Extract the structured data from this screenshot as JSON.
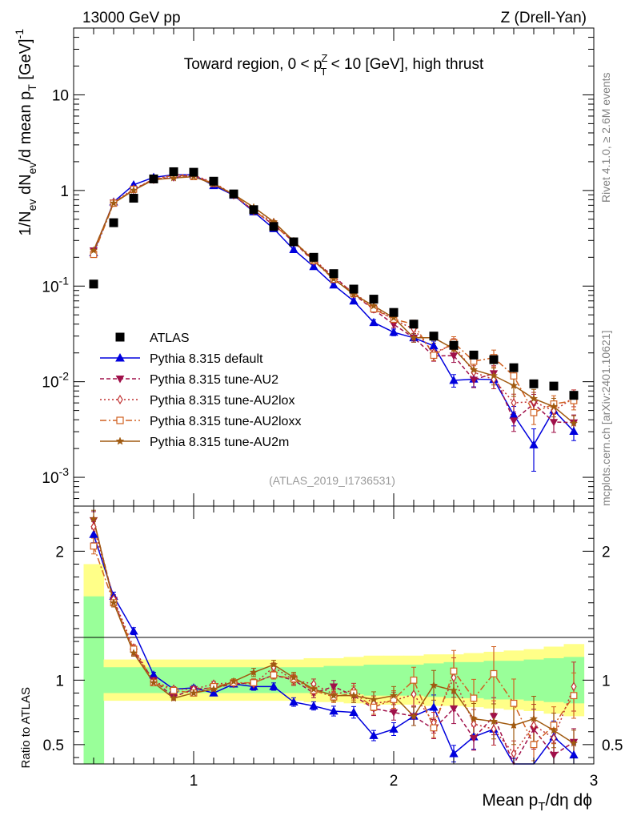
{
  "header": {
    "left": "13000 GeV pp",
    "right": "Z (Drell-Yan)"
  },
  "side_labels": {
    "rivet": "Rivet 4.1.0, ≥ 2.6M events",
    "mcplots": "mcplots.cern.ch [arXiv:2401.10621]"
  },
  "chart_data": {
    "type": "line",
    "title": "Toward region, 0 < p_T^Z < 10 [GeV], high thrust",
    "analysis_tag": "(ATLAS_2019_I1736531)",
    "xlabel": "Mean p_T/dη dϕ",
    "ylabel_main": "1/N_ev dN_ev/d mean p_T [GeV]^-1",
    "ylabel_ratio": "Ratio to ATLAS",
    "xlim": [
      0.4,
      3.0
    ],
    "ylim_main": [
      0.0005,
      50
    ],
    "ylim_ratio": [
      0.35,
      2.35
    ],
    "x_ticks": [
      "1",
      "2",
      "3"
    ],
    "y_ticks_main": [
      "10^-3",
      "10^-2",
      "10^-1",
      "1",
      "10"
    ],
    "y_ticks_ratio": [
      "0.5",
      "1",
      "2"
    ],
    "x": [
      0.5,
      0.6,
      0.7,
      0.8,
      0.9,
      1.0,
      1.1,
      1.2,
      1.3,
      1.4,
      1.5,
      1.6,
      1.7,
      1.8,
      1.9,
      2.0,
      2.1,
      2.2,
      2.3,
      2.4,
      2.5,
      2.6,
      2.7,
      2.8,
      2.9
    ],
    "data": {
      "name": "ATLAS",
      "values": [
        0.105,
        0.46,
        0.83,
        1.32,
        1.57,
        1.55,
        1.25,
        0.92,
        0.63,
        0.42,
        0.29,
        0.2,
        0.135,
        0.093,
        0.073,
        0.053,
        0.04,
        0.03,
        0.024,
        0.019,
        0.017,
        0.014,
        0.0095,
        0.009,
        0.0072
      ]
    },
    "band_inner": [
      0.65,
      0.1,
      0.1,
      0.1,
      0.1,
      0.1,
      0.1,
      0.1,
      0.1,
      0.1,
      0.1,
      0.1,
      0.11,
      0.11,
      0.12,
      0.12,
      0.12,
      0.13,
      0.14,
      0.14,
      0.15,
      0.15,
      0.16,
      0.17,
      0.18
    ],
    "band_outer": [
      0.9,
      0.16,
      0.16,
      0.16,
      0.16,
      0.16,
      0.16,
      0.16,
      0.16,
      0.16,
      0.16,
      0.17,
      0.17,
      0.18,
      0.19,
      0.19,
      0.19,
      0.2,
      0.2,
      0.21,
      0.22,
      0.23,
      0.24,
      0.26,
      0.28
    ],
    "series": [
      {
        "name": "Pythia 8.315 default",
        "color": "#0000dd",
        "dash": "",
        "marker": "triangle-up",
        "filled": true,
        "ratio": [
          2.13,
          1.65,
          1.38,
          1.04,
          0.93,
          0.94,
          0.9,
          0.97,
          0.95,
          0.95,
          0.83,
          0.8,
          0.76,
          0.75,
          0.57,
          0.62,
          0.72,
          0.79,
          0.43,
          0.56,
          0.62,
          0.32,
          0.23,
          0.56,
          0.42
        ],
        "rel_err": [
          0.03,
          0.02,
          0.02,
          0.02,
          0.02,
          0.02,
          0.02,
          0.02,
          0.03,
          0.03,
          0.04,
          0.04,
          0.05,
          0.06,
          0.07,
          0.08,
          0.1,
          0.12,
          0.15,
          0.17,
          0.2,
          0.23,
          0.47,
          0.22,
          0.2
        ]
      },
      {
        "name": "Pythia 8.315 tune-AU2",
        "color": "#a0104a",
        "dash": "5,3",
        "marker": "triangle-down",
        "filled": true,
        "ratio": [
          2.24,
          1.62,
          1.22,
          1.0,
          0.87,
          0.93,
          0.94,
          0.97,
          0.98,
          1.04,
          1.0,
          0.9,
          0.95,
          0.88,
          0.78,
          0.75,
          0.72,
          0.62,
          0.78,
          0.55,
          0.72,
          0.28,
          0.62,
          0.42,
          0.52
        ],
        "rel_err": [
          0.03,
          0.02,
          0.02,
          0.02,
          0.02,
          0.02,
          0.02,
          0.02,
          0.03,
          0.03,
          0.04,
          0.04,
          0.05,
          0.06,
          0.07,
          0.08,
          0.1,
          0.12,
          0.15,
          0.17,
          0.2,
          0.23,
          0.25,
          0.22,
          0.2
        ]
      },
      {
        "name": "Pythia 8.315 tune-AU2lox",
        "color": "#c03030",
        "dash": "2,3",
        "marker": "diamond-open",
        "filled": false,
        "ratio": [
          2.19,
          1.63,
          1.25,
          0.99,
          0.93,
          0.93,
          0.97,
          0.98,
          0.97,
          1.1,
          1.0,
          0.97,
          0.89,
          0.92,
          0.82,
          0.84,
          0.89,
          0.67,
          1.02,
          0.66,
          0.62,
          0.43,
          0.65,
          0.55,
          0.95
        ],
        "rel_err": [
          0.03,
          0.02,
          0.02,
          0.02,
          0.02,
          0.02,
          0.02,
          0.02,
          0.03,
          0.03,
          0.04,
          0.04,
          0.05,
          0.06,
          0.07,
          0.08,
          0.1,
          0.12,
          0.15,
          0.17,
          0.2,
          0.23,
          0.25,
          0.22,
          0.2
        ]
      },
      {
        "name": "Pythia 8.315 tune-AU2loxx",
        "color": "#d06020",
        "dash": "8,3,2,3",
        "marker": "square-open",
        "filled": false,
        "ratio": [
          2.04,
          1.6,
          1.24,
          0.98,
          0.92,
          0.9,
          0.95,
          0.98,
          0.98,
          1.04,
          1.01,
          0.92,
          0.87,
          0.9,
          0.79,
          0.85,
          1.0,
          0.63,
          1.07,
          0.86,
          1.05,
          0.82,
          0.5,
          0.65,
          0.88
        ],
        "rel_err": [
          0.03,
          0.02,
          0.02,
          0.02,
          0.02,
          0.02,
          0.02,
          0.02,
          0.03,
          0.03,
          0.04,
          0.04,
          0.05,
          0.06,
          0.07,
          0.08,
          0.1,
          0.12,
          0.15,
          0.17,
          0.2,
          0.23,
          0.25,
          0.22,
          0.2
        ]
      },
      {
        "name": "Pythia 8.315 tune-AU2m",
        "color": "#a05a10",
        "dash": "",
        "marker": "star",
        "filled": true,
        "ratio": [
          2.25,
          1.6,
          1.21,
          0.98,
          0.86,
          0.9,
          0.93,
          0.99,
          1.06,
          1.12,
          1.02,
          0.93,
          0.88,
          0.88,
          0.85,
          0.88,
          0.72,
          0.96,
          0.92,
          0.7,
          0.68,
          0.65,
          0.7,
          0.61,
          0.51
        ],
        "rel_err": [
          0.03,
          0.02,
          0.02,
          0.02,
          0.02,
          0.02,
          0.02,
          0.02,
          0.03,
          0.03,
          0.04,
          0.04,
          0.05,
          0.06,
          0.07,
          0.08,
          0.1,
          0.12,
          0.15,
          0.17,
          0.2,
          0.23,
          0.25,
          0.22,
          0.2
        ]
      }
    ],
    "legend": [
      "ATLAS",
      "Pythia 8.315 default",
      "Pythia 8.315 tune-AU2",
      "Pythia 8.315 tune-AU2lox",
      "Pythia 8.315 tune-AU2loxx",
      "Pythia 8.315 tune-AU2m"
    ],
    "legend_position": "left-middle",
    "colors": {
      "band_inner": "#99ff99",
      "band_outer": "#ffff88",
      "data": "#000000"
    }
  }
}
